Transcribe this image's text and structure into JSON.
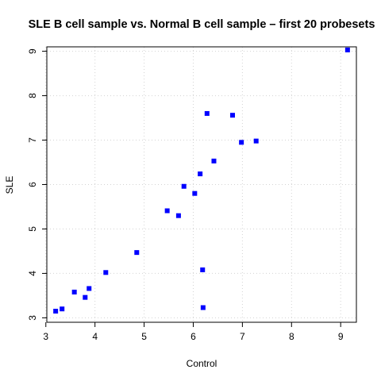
{
  "chart_data": {
    "type": "scatter",
    "title": "SLE B cell sample vs. Normal B cell sample – first 20 probesets",
    "xlabel": "Control",
    "ylabel": "SLE",
    "xlim": [
      3.02,
      9.32
    ],
    "ylim": [
      2.9,
      9.1
    ],
    "xticks": [
      3,
      4,
      5,
      6,
      7,
      8,
      9
    ],
    "yticks": [
      3,
      4,
      5,
      6,
      7,
      8,
      9
    ],
    "grid": true,
    "marker_color": "#0000ff",
    "marker": "filled-square",
    "points": [
      {
        "x": 3.2,
        "y": 3.15
      },
      {
        "x": 3.33,
        "y": 3.2
      },
      {
        "x": 3.58,
        "y": 3.58
      },
      {
        "x": 3.8,
        "y": 3.46
      },
      {
        "x": 3.88,
        "y": 3.66
      },
      {
        "x": 4.22,
        "y": 4.02
      },
      {
        "x": 4.85,
        "y": 4.47
      },
      {
        "x": 5.47,
        "y": 5.41
      },
      {
        "x": 5.7,
        "y": 5.3
      },
      {
        "x": 5.81,
        "y": 5.96
      },
      {
        "x": 6.03,
        "y": 5.8
      },
      {
        "x": 6.14,
        "y": 6.24
      },
      {
        "x": 6.19,
        "y": 4.08
      },
      {
        "x": 6.2,
        "y": 3.23
      },
      {
        "x": 6.28,
        "y": 7.6
      },
      {
        "x": 6.42,
        "y": 6.53
      },
      {
        "x": 6.8,
        "y": 7.56
      },
      {
        "x": 6.98,
        "y": 6.95
      },
      {
        "x": 7.28,
        "y": 6.98
      },
      {
        "x": 9.14,
        "y": 9.03
      }
    ]
  }
}
